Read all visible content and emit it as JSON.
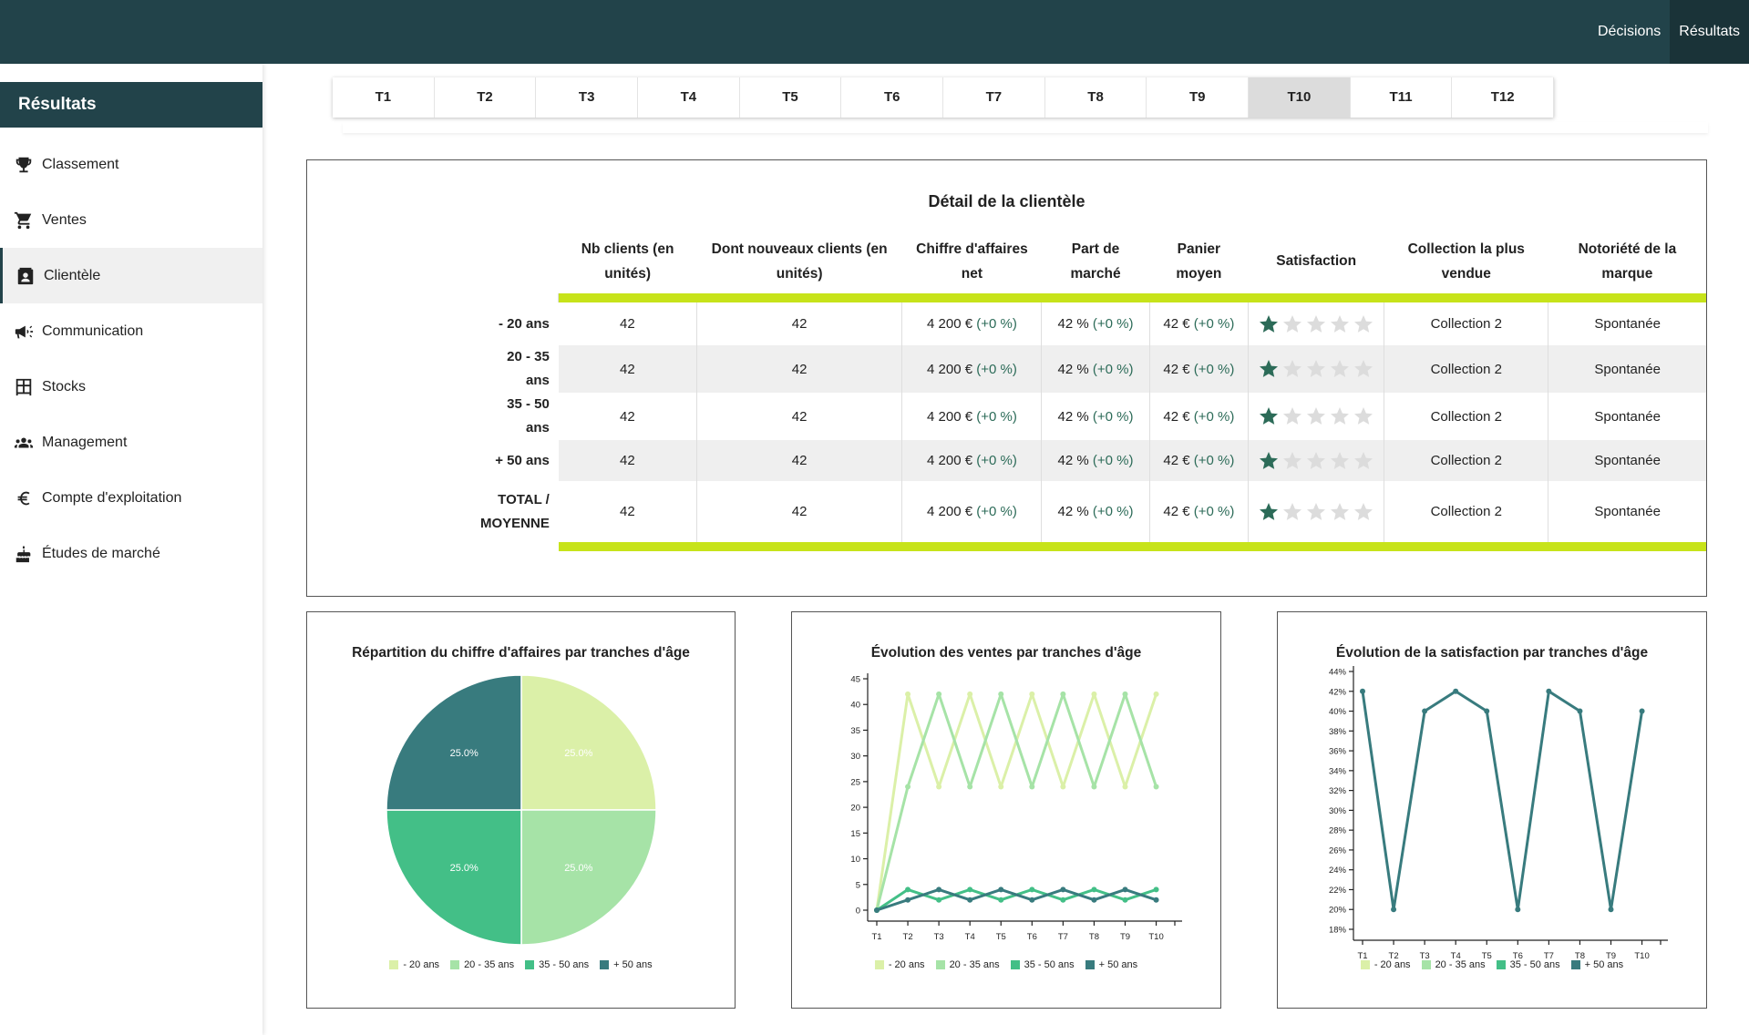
{
  "topnav": {
    "decisions": "Décisions",
    "results": "Résultats"
  },
  "sidebar": {
    "title": "Résultats",
    "items": [
      {
        "label": "Classement",
        "icon": "trophy-icon"
      },
      {
        "label": "Ventes",
        "icon": "cart-icon"
      },
      {
        "label": "Clientèle",
        "icon": "contact-icon"
      },
      {
        "label": "Communication",
        "icon": "megaphone-icon"
      },
      {
        "label": "Stocks",
        "icon": "warehouse-icon"
      },
      {
        "label": "Management",
        "icon": "people-icon"
      },
      {
        "label": "Compte d'exploitation",
        "icon": "euro-icon"
      },
      {
        "label": "Études de marché",
        "icon": "cake-icon"
      }
    ],
    "active_index": 2
  },
  "tabs": {
    "labels": [
      "T1",
      "T2",
      "T3",
      "T4",
      "T5",
      "T6",
      "T7",
      "T8",
      "T9",
      "T10",
      "T11",
      "T12"
    ],
    "active_index": 9
  },
  "clientele": {
    "title": "Détail de la clientèle",
    "headers": {
      "nb_clients": "Nb clients (en unités)",
      "new_clients": "Dont nouveaux clients (en unités)",
      "ca": "Chiffre d'affaires net",
      "part": "Part de marché",
      "panier": "Panier moyen",
      "satisfaction": "Satisfaction",
      "collection": "Collection la plus vendue",
      "notoriete": "Notoriété de la marque"
    },
    "rows": [
      {
        "label": "- 20 ans",
        "nb": "42",
        "new": "42",
        "ca": "4 200 €",
        "ca_delta": "(+0 %)",
        "part": "42 %",
        "part_delta": "(+0 %)",
        "panier": "42 €",
        "panier_delta": "(+0 %)",
        "stars": 1,
        "collection": "Collection 2",
        "notoriete": "Spontanée"
      },
      {
        "label": "20 - 35 ans",
        "nb": "42",
        "new": "42",
        "ca": "4 200 €",
        "ca_delta": "(+0 %)",
        "part": "42 %",
        "part_delta": "(+0 %)",
        "panier": "42 €",
        "panier_delta": "(+0 %)",
        "stars": 1,
        "collection": "Collection 2",
        "notoriete": "Spontanée"
      },
      {
        "label": "35 - 50 ans",
        "nb": "42",
        "new": "42",
        "ca": "4 200 €",
        "ca_delta": "(+0 %)",
        "part": "42 %",
        "part_delta": "(+0 %)",
        "panier": "42 €",
        "panier_delta": "(+0 %)",
        "stars": 1,
        "collection": "Collection 2",
        "notoriete": "Spontanée"
      },
      {
        "label": "+ 50 ans",
        "nb": "42",
        "new": "42",
        "ca": "4 200 €",
        "ca_delta": "(+0 %)",
        "part": "42 %",
        "part_delta": "(+0 %)",
        "panier": "42 €",
        "panier_delta": "(+0 %)",
        "stars": 1,
        "collection": "Collection 2",
        "notoriete": "Spontanée"
      },
      {
        "label": "TOTAL / MOYENNE",
        "nb": "42",
        "new": "42",
        "ca": "4 200 €",
        "ca_delta": "(+0 %)",
        "part": "42 %",
        "part_delta": "(+0 %)",
        "panier": "42 €",
        "panier_delta": "(+0 %)",
        "stars": 1,
        "collection": "Collection 2",
        "notoriete": "Spontanée"
      }
    ],
    "star_filled_color": "#2c6b58",
    "star_empty_color": "#dcdcdc"
  },
  "legend_labels": [
    "- 20 ans",
    "20 - 35 ans",
    "35 - 50 ans",
    "+ 50 ans"
  ],
  "series_colors": [
    "#dbf0a8",
    "#a6e3a7",
    "#43bf87",
    "#387b7e"
  ],
  "chart_data": [
    {
      "type": "pie",
      "title": "Répartition du chiffre d'affaires par tranches d'âge",
      "labels": [
        "- 20 ans",
        "20 - 35 ans",
        "35 - 50 ans",
        "+ 50 ans"
      ],
      "values": [
        25,
        25,
        25,
        25
      ],
      "value_labels": [
        "25.0%",
        "25.0%",
        "25.0%",
        "25.0%"
      ],
      "legend": "bottom"
    },
    {
      "type": "line",
      "title": "Évolution des ventes par tranches d'âge",
      "categories": [
        "T1",
        "T2",
        "T3",
        "T4",
        "T5",
        "T6",
        "T7",
        "T8",
        "T9",
        "T10"
      ],
      "ylim": [
        0,
        45
      ],
      "yticks": [
        0,
        5,
        10,
        15,
        20,
        25,
        30,
        35,
        40,
        45
      ],
      "series": [
        {
          "name": "- 20 ans",
          "values": [
            0,
            42,
            24,
            42,
            24,
            42,
            24,
            42,
            24,
            42
          ]
        },
        {
          "name": "20 - 35 ans",
          "values": [
            0,
            24,
            42,
            24,
            42,
            24,
            42,
            24,
            42,
            24
          ]
        },
        {
          "name": "35 - 50 ans",
          "values": [
            0,
            4,
            2,
            4,
            2,
            4,
            2,
            4,
            2,
            4
          ]
        },
        {
          "name": "+ 50 ans",
          "values": [
            0,
            2,
            4,
            2,
            4,
            2,
            4,
            2,
            4,
            2
          ]
        }
      ],
      "legend": "bottom"
    },
    {
      "type": "line",
      "title": "Évolution de la satisfaction par tranches d'âge",
      "categories": [
        "T1",
        "T2",
        "T3",
        "T4",
        "T5",
        "T6",
        "T7",
        "T8",
        "T9",
        "T10"
      ],
      "ylim": [
        18,
        44
      ],
      "yticks": [
        18,
        20,
        22,
        24,
        26,
        28,
        30,
        32,
        34,
        36,
        38,
        40,
        42,
        44
      ],
      "ytick_suffix": "%",
      "series": [
        {
          "name": "+ 50 ans",
          "values": [
            42,
            20,
            40,
            42,
            40,
            20,
            42,
            40,
            20,
            40
          ]
        }
      ],
      "legend": "bottom"
    }
  ]
}
